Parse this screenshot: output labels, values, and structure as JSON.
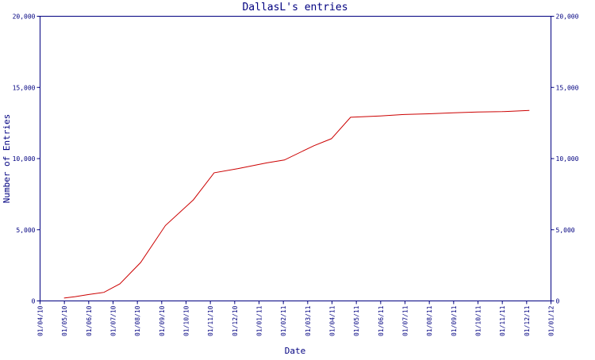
{
  "chart_data": {
    "type": "line",
    "title": "DallasL's entries",
    "xlabel": "Date",
    "ylabel": "Number of Entries",
    "ylim": [
      0,
      20000
    ],
    "xlim": [
      "2010-04-01",
      "2012-01-01"
    ],
    "grid": false,
    "x_tick_labels": [
      "01/04/10",
      "01/05/10",
      "01/06/10",
      "01/07/10",
      "01/08/10",
      "01/09/10",
      "01/10/10",
      "01/11/10",
      "01/12/10",
      "01/01/11",
      "01/02/11",
      "01/03/11",
      "01/04/11",
      "01/05/11",
      "01/06/11",
      "01/07/11",
      "01/08/11",
      "01/09/11",
      "01/10/11",
      "01/11/11",
      "01/12/11",
      "01/01/12"
    ],
    "y_tick_labels": [
      "0",
      "5,000",
      "10,000",
      "15,000",
      "20,000"
    ],
    "y_ticks": [
      0,
      5000,
      10000,
      15000,
      20000
    ],
    "axis_color": "#000080",
    "series": [
      {
        "color": "#cc0000",
        "x": [
          "2010-05-01",
          "2010-05-15",
          "2010-06-01",
          "2010-06-20",
          "2010-07-10",
          "2010-08-05",
          "2010-09-05",
          "2010-10-10",
          "2010-11-05",
          "2010-12-05",
          "2011-01-10",
          "2011-02-01",
          "2011-03-10",
          "2011-04-01",
          "2011-04-25",
          "2011-06-01",
          "2011-07-01",
          "2011-08-01",
          "2011-09-01",
          "2011-10-01",
          "2011-11-01",
          "2011-12-05"
        ],
        "y": [
          200,
          300,
          450,
          600,
          1200,
          2700,
          5300,
          7100,
          9000,
          9300,
          9700,
          9900,
          10900,
          11400,
          12900,
          13000,
          13100,
          13150,
          13220,
          13270,
          13300,
          13380
        ]
      }
    ]
  }
}
